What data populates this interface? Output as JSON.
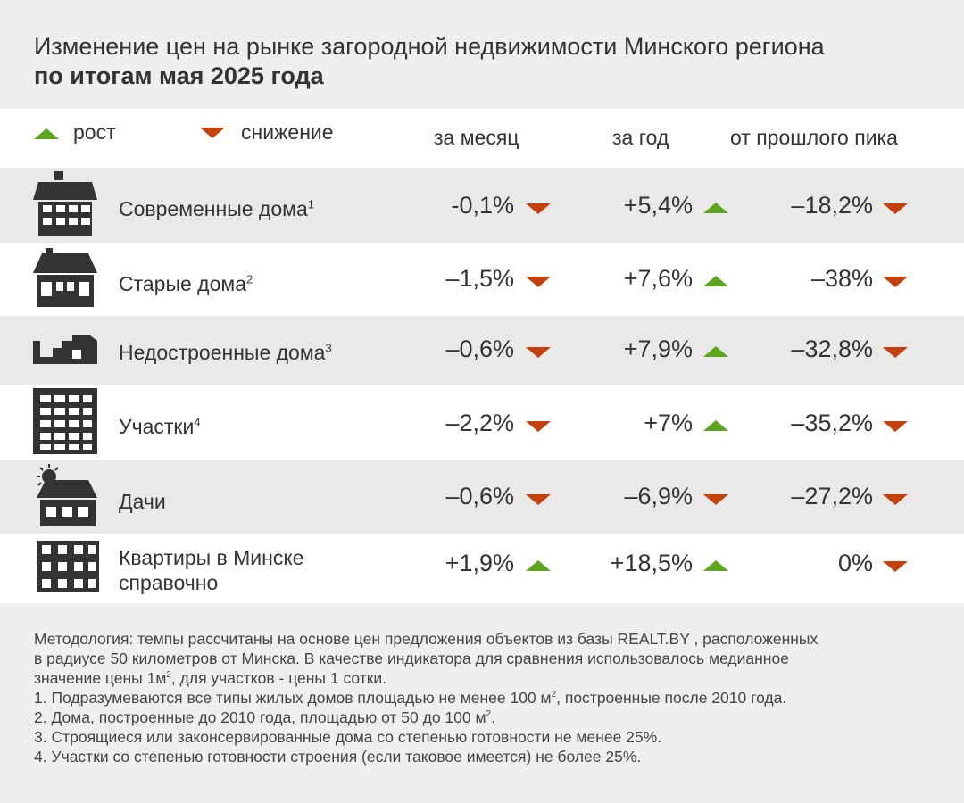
{
  "title": {
    "line1": "Изменение цен на рынке загородной недвижимости Минского региона",
    "line2": "по итогам мая 2025 года"
  },
  "legend": {
    "up_label": "рост",
    "down_label": "снижение",
    "up_color": "#5ea51f",
    "down_color": "#c4410c"
  },
  "columns": {
    "month": "за месяц",
    "year": "за год",
    "peak": "от прошлого пика"
  },
  "rows": [
    {
      "label": "Современные дома",
      "sup": "1",
      "icon": "modern-house-icon",
      "month": "-0,1%",
      "month_dir": "down",
      "year": "+5,4%",
      "year_dir": "up",
      "peak": "–18,2%",
      "peak_dir": "down"
    },
    {
      "label": "Старые дома",
      "sup": "2",
      "icon": "old-house-icon",
      "month": "–1,5%",
      "month_dir": "down",
      "year": "+7,6%",
      "year_dir": "up",
      "peak": "–38%",
      "peak_dir": "down"
    },
    {
      "label": "Недостроенные дома",
      "sup": "3",
      "icon": "unfinished-house-icon",
      "month": "–0,6%",
      "month_dir": "down",
      "year": "+7,9%",
      "year_dir": "up",
      "peak": "–32,8%",
      "peak_dir": "down"
    },
    {
      "label": "Участки",
      "sup": "4",
      "icon": "land-plot-icon",
      "month": "–2,2%",
      "month_dir": "down",
      "year": "+7%",
      "year_dir": "up",
      "peak": "–35,2%",
      "peak_dir": "down"
    },
    {
      "label": "Дачи",
      "sup": "",
      "icon": "dacha-icon",
      "month": "–0,6%",
      "month_dir": "down",
      "year": "–6,9%",
      "year_dir": "down",
      "peak": "–27,2%",
      "peak_dir": "down"
    },
    {
      "label": "Квартиры в Минске",
      "label2": "справочно",
      "sup": "",
      "icon": "apartment-building-icon",
      "month": "+1,9%",
      "month_dir": "up",
      "year": "+18,5%",
      "year_dir": "up",
      "peak": "0%",
      "peak_dir": "down"
    }
  ],
  "notes": {
    "method1": "Методология: темпы рассчитаны на основе цен предложения объектов из базы REALT.BY , расположенных",
    "method2": "в радиусе 50 километров от Минска. В качестве индикатора для сравнения использовалось медианное",
    "method3a": "значение цены 1м",
    "method3sup": "2",
    "method3b": ", для участков  - цены 1 сотки.",
    "n1a": "1. Подразумеваются все типы жилых домов площадью не менее 100 м",
    "n1sup": "2",
    "n1b": ", построенные после 2010 года.",
    "n2a": "2. Дома, построенные до 2010 года, площадью от 50 до 100 м",
    "n2sup": "2",
    "n2b": ".",
    "n3": "3. Строящиеся или законсервированные дома со степенью готовности не менее 25%.",
    "n4": "4. Участки со степенью готовности строения (если таковое имеется) не более 25%."
  }
}
